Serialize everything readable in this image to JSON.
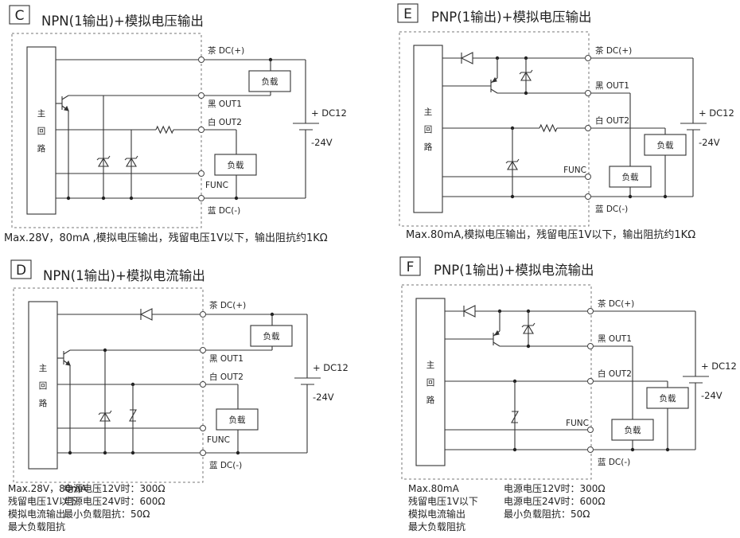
{
  "panels": [
    {
      "id": "C",
      "title": "NPN(1输出)+模拟电压输出",
      "type": "npn-voltage",
      "block_label": [
        "主",
        "回",
        "路"
      ],
      "terminals": {
        "dc_plus": "茶 DC(+)",
        "out1": "黑 OUT1",
        "out2": "白 OUT2",
        "func": "FUNC",
        "dc_minus": "蓝 DC(-)"
      },
      "load": "负载",
      "supply_plus": "+ DC12",
      "supply_minus": "-24V",
      "note": "Max.28V，80mA ,模拟电压输出，残留电压1V以下，输出阻抗约1KΩ"
    },
    {
      "id": "D",
      "title": "NPN(1输出)+模拟电流输出",
      "type": "npn-current",
      "block_label": [
        "主",
        "回",
        "路"
      ],
      "terminals": {
        "dc_plus": "茶 DC(+)",
        "out1": "黑 OUT1",
        "out2": "白 OUT2",
        "func": "FUNC",
        "dc_minus": "蓝 DC(-)"
      },
      "load": "负载",
      "supply_plus": "+ DC12",
      "supply_minus": "-24V",
      "note_col1": [
        "Max.28V，80mA",
        "残留电压1V以下",
        "模拟电流输出",
        "最大负载阻抗"
      ],
      "note_col2": [
        "电源电压12V时：300Ω",
        "电源电压24V时：600Ω",
        "最小负载阻抗：50Ω"
      ]
    },
    {
      "id": "E",
      "title": "PNP(1输出)+模拟电压输出",
      "type": "pnp-voltage",
      "block_label": [
        "主",
        "回",
        "路"
      ],
      "terminals": {
        "dc_plus": "茶 DC(+)",
        "out1": "黑 OUT1",
        "out2": "白 OUT2",
        "func": "FUNC",
        "dc_minus": "蓝 DC(-)"
      },
      "load": "负载",
      "supply_plus": "+ DC12",
      "supply_minus": "-24V",
      "note": "Max.80mA,模拟电压输出，残留电压1V以下，输出阻抗约1KΩ"
    },
    {
      "id": "F",
      "title": "PNP(1输出)+模拟电流输出",
      "type": "pnp-current",
      "block_label": [
        "主",
        "回",
        "路"
      ],
      "terminals": {
        "dc_plus": "茶 DC(+)",
        "out1": "黑 OUT1",
        "out2": "白 OUT2",
        "func": "FUNC",
        "dc_minus": "蓝 DC(-)"
      },
      "load": "负载",
      "supply_plus": "+ DC12",
      "supply_minus": "-24V",
      "note_col1": [
        "Max.80mA",
        "残留电压1V以下",
        "模拟电流输出",
        "最大负载阻抗"
      ],
      "note_col2": [
        "电源电压12V时：300Ω",
        "电源电压24V时：600Ω",
        "最小负载阻抗：50Ω"
      ]
    }
  ]
}
